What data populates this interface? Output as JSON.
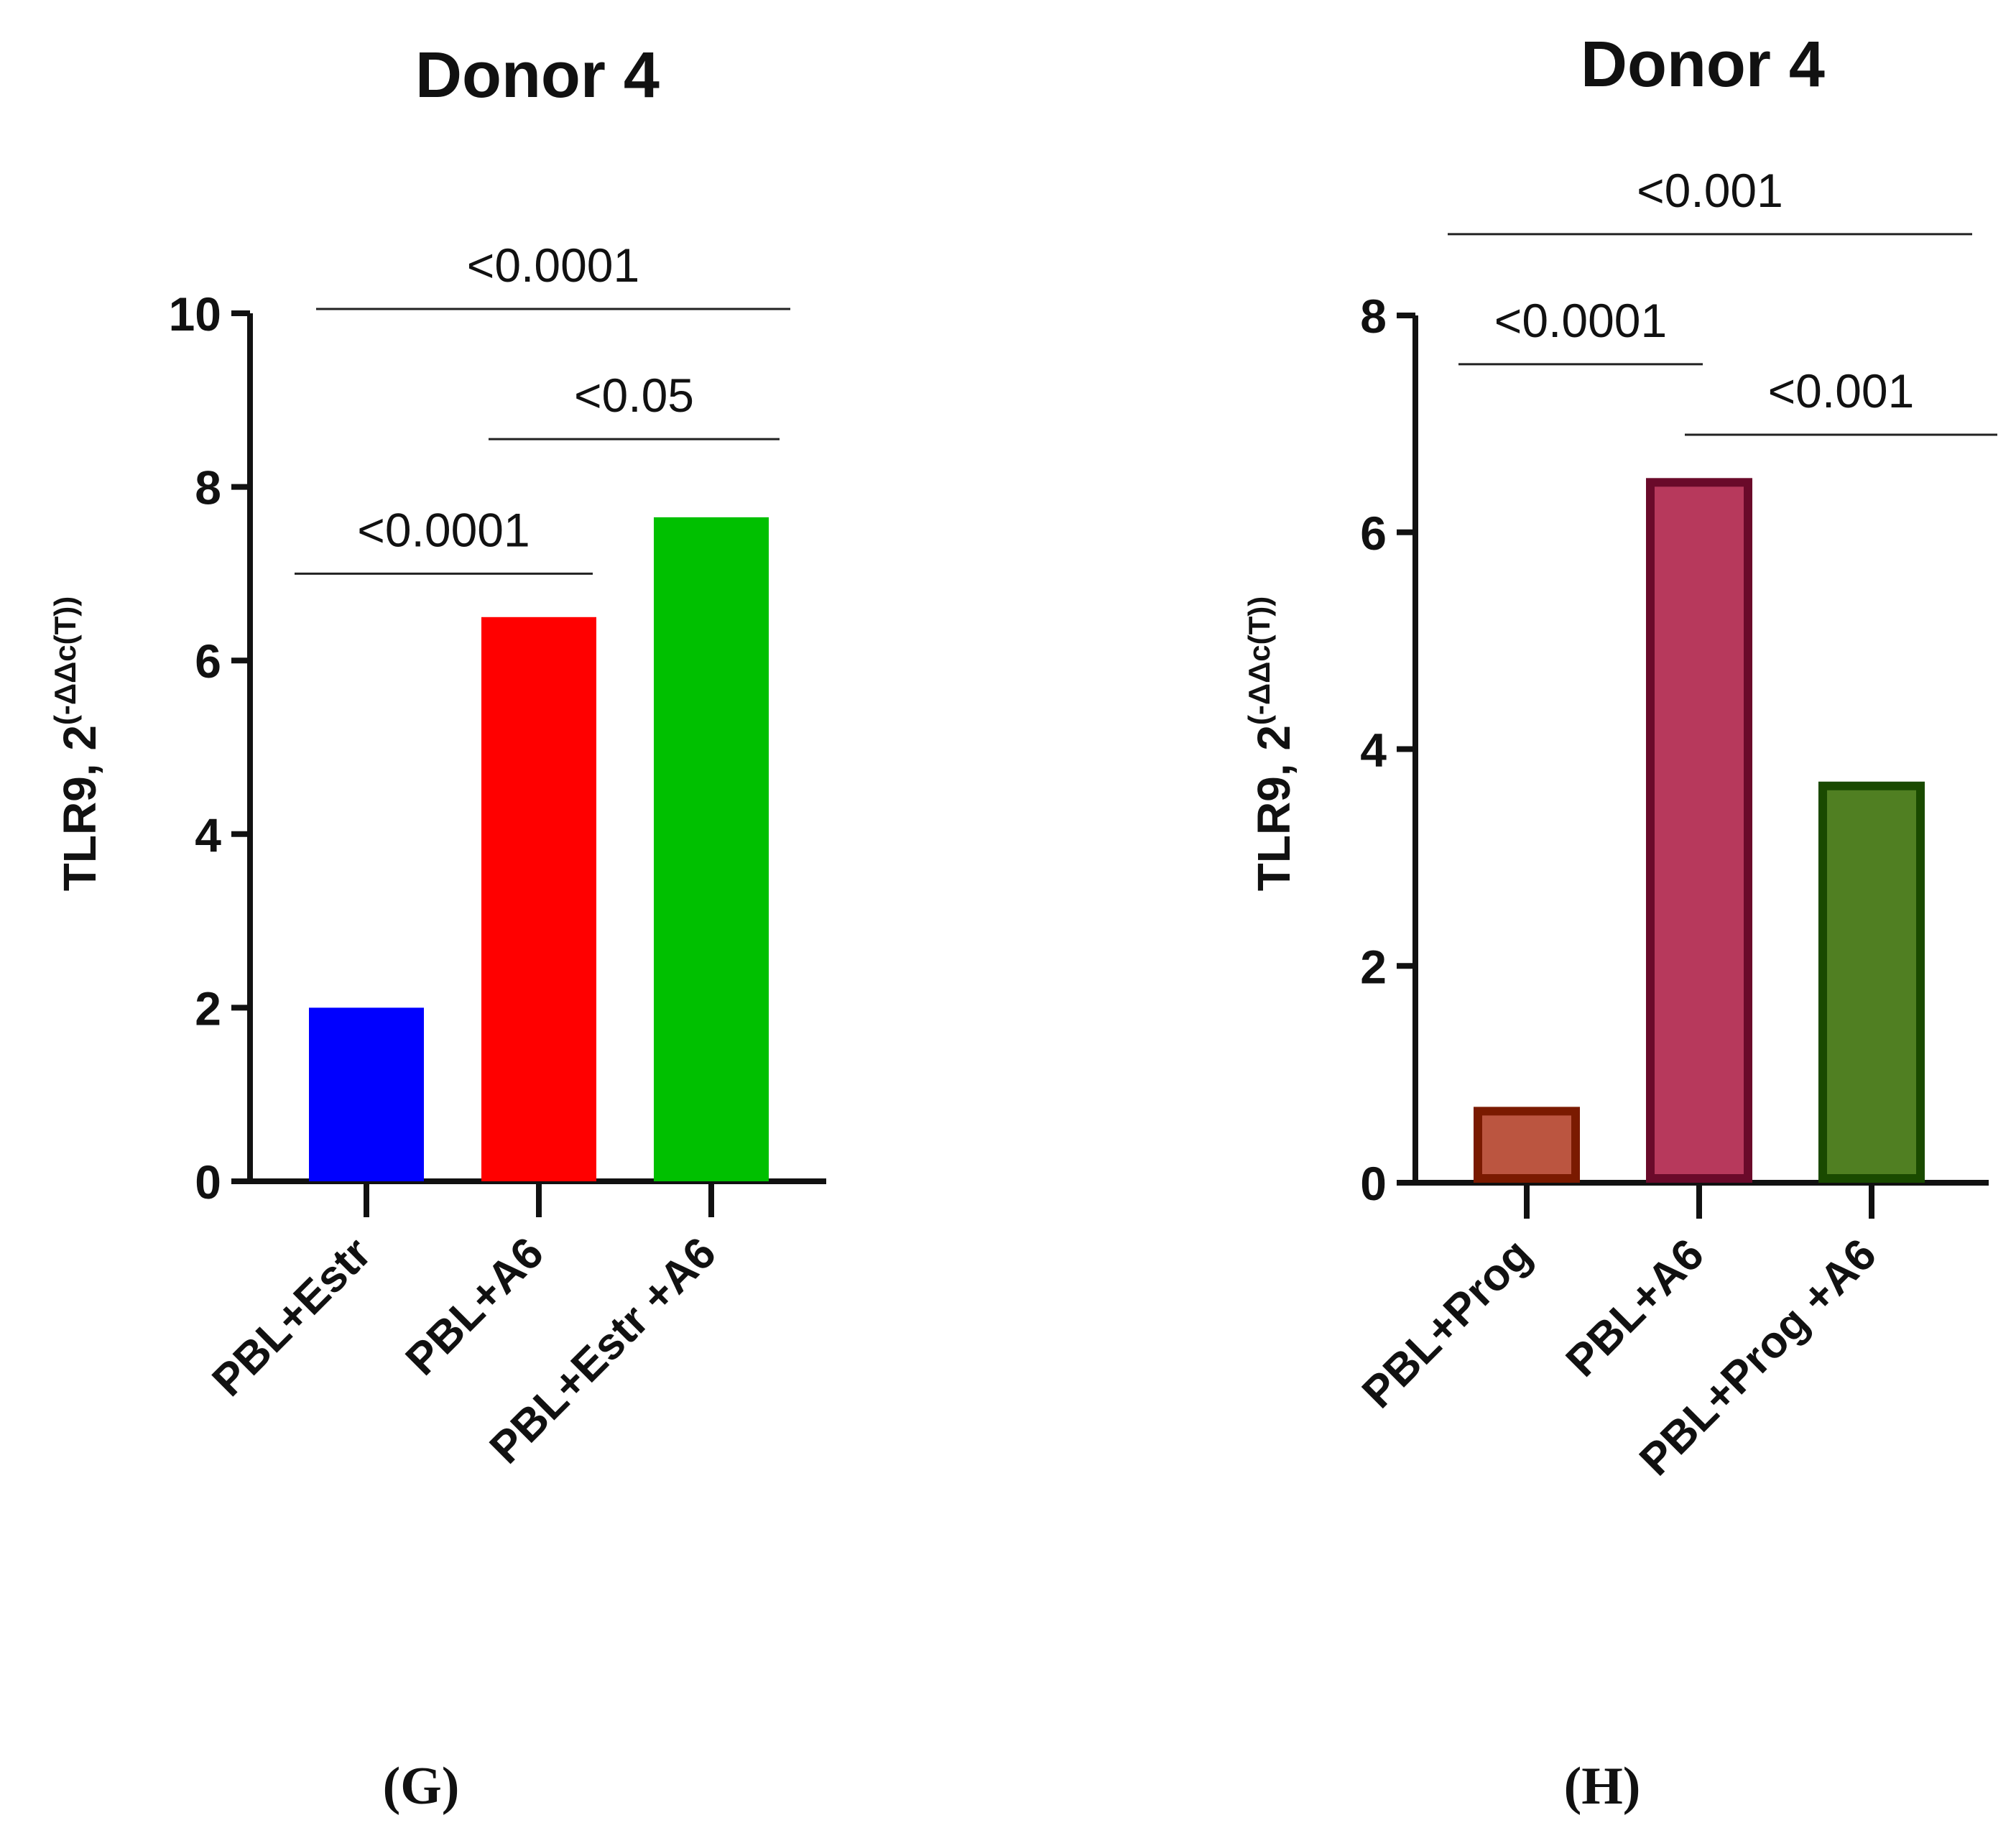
{
  "chart_data": [
    {
      "type": "bar",
      "panel_label": "(G)",
      "title": "Donor 4",
      "ylabel_main": "TLR9, 2",
      "ylabel_sup": "(-ΔΔc(T))",
      "ylim": [
        0,
        10
      ],
      "yticks": [
        "0",
        "2",
        "4",
        "6",
        "8",
        "10"
      ],
      "categories": [
        "PBL+Estr",
        "PBL+A6",
        "PBL+Estr +A6"
      ],
      "values": [
        2.0,
        6.5,
        7.65
      ],
      "colors": [
        "#0000ff",
        "#ff0000",
        "#00c000"
      ],
      "border_colors": [
        "#0000ff",
        "#ff0000",
        "#00c000"
      ],
      "significance": [
        {
          "label": "<0.0001",
          "from": 0,
          "to": 1,
          "y": 7.0
        },
        {
          "label": "<0.05",
          "from": 1,
          "to": 2,
          "y": 8.55
        },
        {
          "label": "<0.0001",
          "from": 0,
          "to": 2,
          "y": 10.05
        }
      ]
    },
    {
      "type": "bar",
      "panel_label": "(H)",
      "title": "Donor 4",
      "ylabel_main": "TLR9, 2",
      "ylabel_sup": "(-ΔΔc(T))",
      "ylim": [
        0,
        8
      ],
      "yticks": [
        "0",
        "2",
        "4",
        "6",
        "8"
      ],
      "categories": [
        "PBL+Prog",
        "PBL+A6",
        "PBL+Prog +A6"
      ],
      "values": [
        0.7,
        6.5,
        3.7
      ],
      "colors": [
        "#bb5540",
        "#b7395c",
        "#507f22"
      ],
      "border_colors": [
        "#7a1a00",
        "#6a0a2a",
        "#1a4a00"
      ],
      "significance": [
        {
          "label": "<0.0001",
          "from": 0,
          "to": 1,
          "y": 7.55
        },
        {
          "label": "<0.001",
          "from": 1,
          "to": 2,
          "y": 6.9
        },
        {
          "label": "<0.001",
          "from": 0,
          "to": 2,
          "y": 8.75
        }
      ]
    }
  ]
}
